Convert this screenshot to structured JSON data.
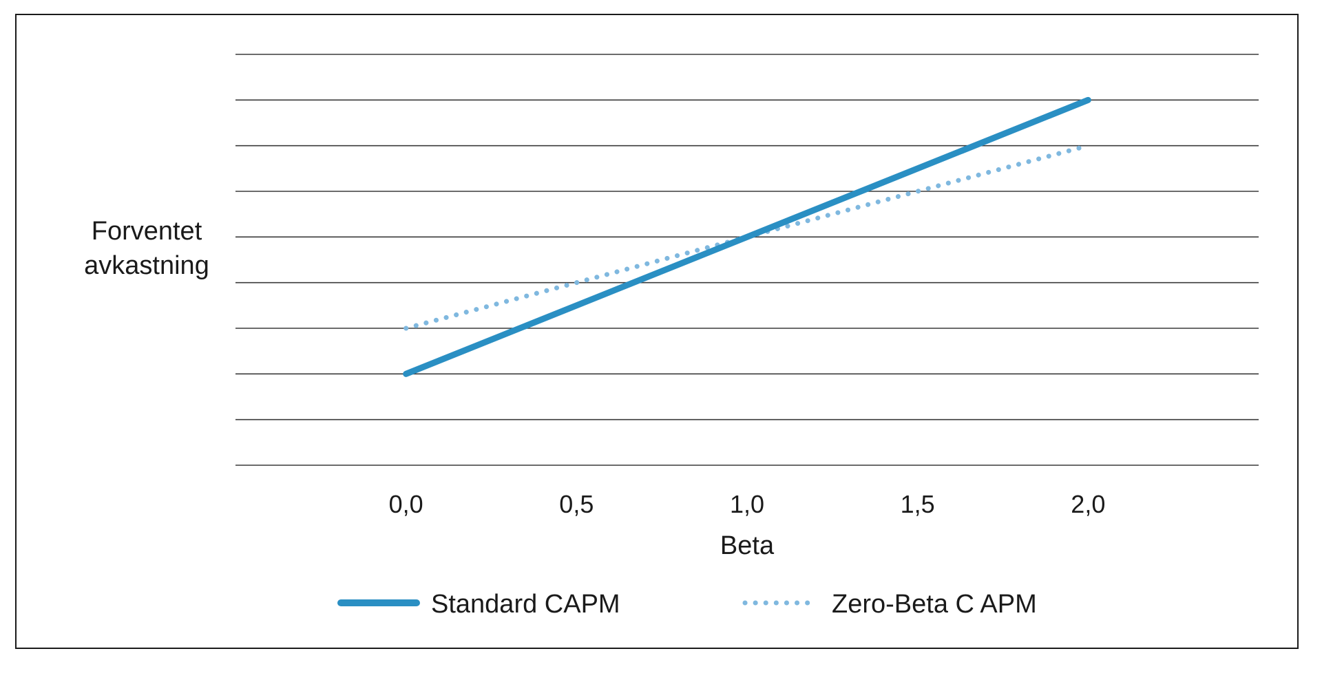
{
  "chart_data": {
    "type": "line",
    "title": "",
    "xlabel": "Beta",
    "ylabel_lines": [
      "Forventet",
      "avkastning"
    ],
    "x": [
      0.0,
      2.0
    ],
    "x_tick_labels": [
      "0,0",
      "0,5",
      "1,0",
      "1,5",
      "2,0"
    ],
    "x_ticks": [
      0.0,
      0.5,
      1.0,
      1.5,
      2.0
    ],
    "xlim": [
      -0.5,
      2.5
    ],
    "ylim": [
      0,
      9
    ],
    "y_gridlines": [
      0,
      1,
      2,
      3,
      4,
      5,
      6,
      7,
      8,
      9
    ],
    "grid": true,
    "y_tick_labels_shown": false,
    "legend_position": "bottom",
    "series": [
      {
        "name": "Standard CAPM",
        "style": "solid",
        "color": "#2a8fc3",
        "points": [
          [
            0.0,
            2.0
          ],
          [
            2.0,
            8.0
          ]
        ]
      },
      {
        "name": "Zero-Beta C APM",
        "style": "dotted",
        "color": "#7fb8df",
        "points": [
          [
            0.0,
            3.0
          ],
          [
            2.0,
            7.0
          ]
        ]
      }
    ]
  }
}
